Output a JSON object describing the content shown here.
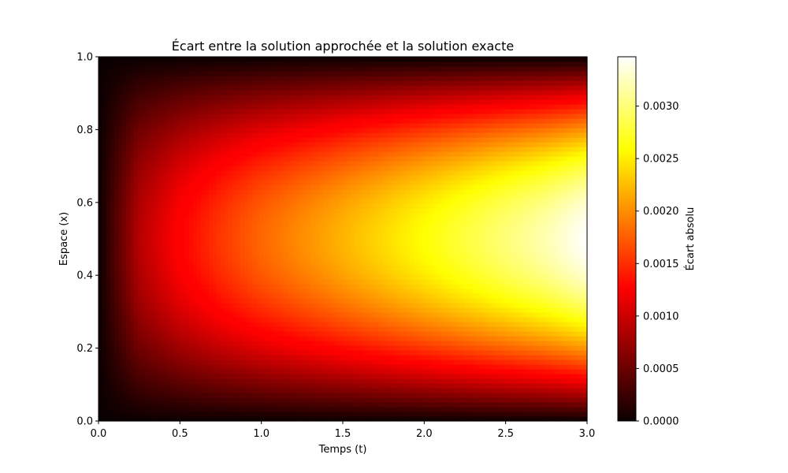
{
  "chart_data": {
    "type": "heatmap",
    "title": "Écart entre la solution approchée et la solution exacte",
    "xlabel": "Temps (t)",
    "ylabel": "Espace (x)",
    "xlim": [
      0.0,
      3.0
    ],
    "ylim": [
      0.0,
      1.0
    ],
    "x_ticks": [
      "0.0",
      "0.5",
      "1.0",
      "1.5",
      "2.0",
      "2.5",
      "3.0"
    ],
    "y_ticks": [
      "0.0",
      "0.2",
      "0.4",
      "0.6",
      "0.8",
      "1.0"
    ],
    "colormap": "hot",
    "colorbar": {
      "label": "Écart absolu",
      "range": [
        0.0,
        0.00347
      ],
      "ticks": [
        "0.0000",
        "0.0005",
        "0.0010",
        "0.0015",
        "0.0020",
        "0.0025",
        "0.0030"
      ]
    },
    "grid": false,
    "t_samples": [
      0.0,
      0.25,
      0.5,
      0.75,
      1.0,
      1.25,
      1.5,
      1.75,
      2.0,
      2.25,
      2.5,
      2.75,
      3.0
    ],
    "max_error_at_center_x0_5": [
      0.0,
      0.00085,
      0.00125,
      0.00155,
      0.0018,
      0.002,
      0.0022,
      0.0024,
      0.0026,
      0.0028,
      0.003,
      0.0032,
      0.00347
    ],
    "spatial_profile": "sin(pi*x)"
  }
}
